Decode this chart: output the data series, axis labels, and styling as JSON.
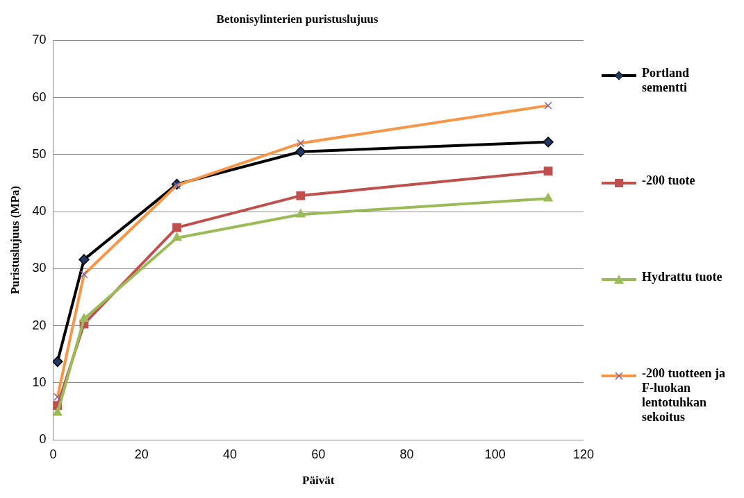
{
  "chart_data": {
    "type": "line",
    "title": "Betonisylinterien puristuslujuus",
    "xlabel": "Päivät",
    "ylabel": "Puristuslujuus (MPa)",
    "x": [
      1,
      7,
      28,
      56,
      112
    ],
    "series": [
      {
        "name": "Portland sementti",
        "color": "#000000",
        "marker": "diamond",
        "values": [
          13.7,
          31.6,
          44.8,
          50.5,
          52.2
        ]
      },
      {
        "name": "-200 tuote",
        "color": "#c0504d",
        "marker": "square",
        "values": [
          6.0,
          20.3,
          37.2,
          42.8,
          47.1
        ]
      },
      {
        "name": "Hydrattu tuote",
        "color": "#9bbb59",
        "marker": "triangle",
        "values": [
          4.7,
          21.2,
          35.4,
          39.5,
          42.3
        ]
      },
      {
        "name": "-200 tuotteen ja F-luokan lentotuhkan sekoitus",
        "color": "#f79646",
        "marker": "cross",
        "values": [
          7.5,
          29.0,
          44.6,
          52.0,
          58.6
        ]
      }
    ],
    "xlim": [
      0,
      120
    ],
    "xticks": [
      0,
      20,
      40,
      60,
      80,
      100,
      120
    ],
    "ylim": [
      0,
      70
    ],
    "yticks": [
      0,
      10,
      20,
      30,
      40,
      50,
      60,
      70
    ],
    "grid": "y",
    "legend": "right",
    "line_style": "solid"
  }
}
